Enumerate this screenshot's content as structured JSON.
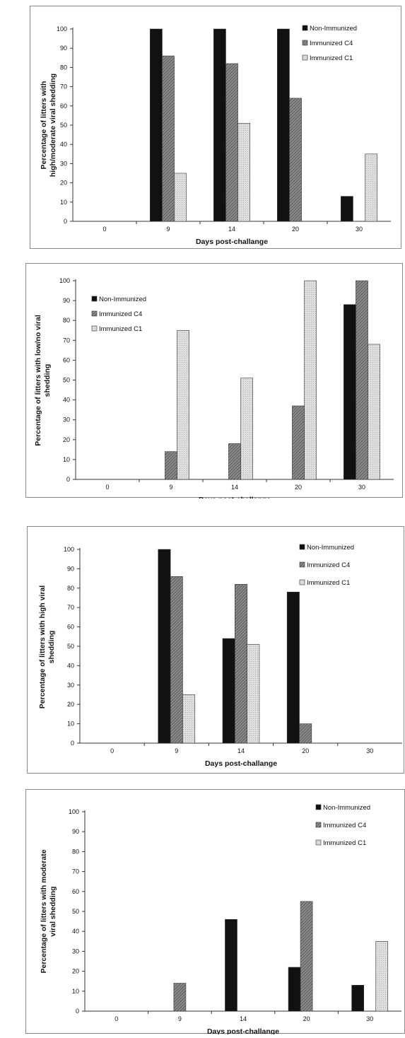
{
  "colors": {
    "non_immunized": "#111111",
    "immunized_c4": "#8c8c8c",
    "immunized_c1": "#dedede"
  },
  "chart_data": [
    {
      "type": "bar",
      "categories": [
        "0",
        "9",
        "14",
        "20",
        "30"
      ],
      "series": [
        {
          "name": "Non-Immunized",
          "values": [
            0,
            100,
            100,
            100,
            13
          ]
        },
        {
          "name": "Immunized C4",
          "values": [
            0,
            86,
            82,
            64,
            0
          ]
        },
        {
          "name": "Immunized C1",
          "values": [
            0,
            25,
            51,
            0,
            35
          ]
        }
      ],
      "title": "",
      "xlabel": "Days post-challange",
      "ylabel": [
        "Percentage of litters with",
        "high/moderate viral shedding"
      ],
      "ylim": [
        0,
        100
      ],
      "yticks": [
        "0",
        "10",
        "20",
        "30",
        "40",
        "50",
        "60",
        "70",
        "80",
        "90",
        "100"
      ],
      "legend": "top-right",
      "grid": false
    },
    {
      "type": "bar",
      "categories": [
        "0",
        "9",
        "14",
        "20",
        "30"
      ],
      "series": [
        {
          "name": "Non-Immunized",
          "values": [
            0,
            0,
            0,
            0,
            88
          ]
        },
        {
          "name": "Immunized C4",
          "values": [
            0,
            14,
            18,
            37,
            100
          ]
        },
        {
          "name": "Immunized C1",
          "values": [
            0,
            75,
            51,
            100,
            68
          ]
        }
      ],
      "title": "",
      "xlabel": "Days post-challange",
      "ylabel": [
        "Percentage of litters with low/no viral",
        "shedding"
      ],
      "ylim": [
        0,
        100
      ],
      "yticks": [
        "0",
        "10",
        "20",
        "30",
        "40",
        "50",
        "60",
        "70",
        "80",
        "90",
        "100"
      ],
      "legend": "top-left",
      "grid": false
    },
    {
      "type": "bar",
      "categories": [
        "0",
        "9",
        "14",
        "20",
        "30"
      ],
      "series": [
        {
          "name": "Non-Immunized",
          "values": [
            0,
            100,
            54,
            78,
            0
          ]
        },
        {
          "name": "Immunized C4",
          "values": [
            0,
            86,
            82,
            10,
            0
          ]
        },
        {
          "name": "Immunized C1",
          "values": [
            0,
            25,
            51,
            0,
            0
          ]
        }
      ],
      "title": "",
      "xlabel": "Days post-challange",
      "ylabel": [
        "Percentage of litters with high viral",
        "shedding"
      ],
      "ylim": [
        0,
        100
      ],
      "yticks": [
        "0",
        "10",
        "20",
        "30",
        "40",
        "50",
        "60",
        "70",
        "80",
        "90",
        "100"
      ],
      "legend": "top-right",
      "grid": false
    },
    {
      "type": "bar",
      "categories": [
        "0",
        "9",
        "14",
        "20",
        "30"
      ],
      "series": [
        {
          "name": "Non-Immunized",
          "values": [
            0,
            0,
            46,
            22,
            13
          ]
        },
        {
          "name": "Immunized C4",
          "values": [
            0,
            14,
            0,
            55,
            0
          ]
        },
        {
          "name": "Immunized C1",
          "values": [
            0,
            0,
            0,
            0,
            35
          ]
        }
      ],
      "title": "",
      "xlabel": "Days post-challange",
      "ylabel": [
        "Percentage of litters with moderate",
        "viral shedding"
      ],
      "ylim": [
        0,
        100
      ],
      "yticks": [
        "0",
        "10",
        "20",
        "30",
        "40",
        "50",
        "60",
        "70",
        "80",
        "90",
        "100"
      ],
      "legend": "top-right",
      "grid": false
    }
  ]
}
